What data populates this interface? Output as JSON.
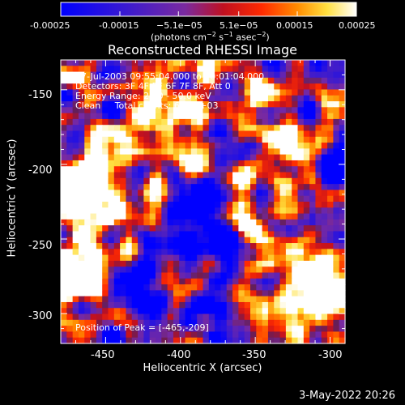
{
  "colorbar": {
    "ticks": [
      "-0.00025",
      "-0.00015",
      "−5.1e−05",
      "5.1e−05",
      "0.00015",
      "0.00025"
    ],
    "tick_values": [
      -0.00025,
      -0.00015,
      -5.1e-05,
      5.1e-05,
      0.00015,
      0.00025
    ],
    "range": [
      -0.00025,
      0.00025
    ],
    "units_prefix": "(photons cm",
    "units_exp1": "−2",
    "units_mid": " s",
    "units_exp2": "−1",
    "units_mid2": " asec",
    "units_exp3": "−2",
    "units_suffix": ")"
  },
  "chart_data": {
    "type": "heatmap",
    "title": "Reconstructed RHESSI Image",
    "xlabel": "Heliocentric X (arcsec)",
    "ylabel": "Heliocentric Y (arcsec)",
    "xlim": [
      -480,
      -290
    ],
    "ylim": [
      -320,
      -130
    ],
    "xticks": [
      -450,
      -400,
      -350,
      -300
    ],
    "yticks": [
      -150,
      -200,
      -250,
      -300
    ],
    "colormap": "rainbow-ish: blue → purple → red → orange → yellow → white",
    "annotations": [
      "17-Jul-2003 09:55:04.000 to 10:01:04.000",
      "Detectors: 3F 4F 5F 6F 7F 8F, Att 0",
      "Energy Range: 25.0 - 50.0 keV",
      "Clean     Total counts: 6.81E+03"
    ],
    "peak_label": "Position of Peak = [-465,-209]",
    "peak": [
      -465,
      -209
    ]
  },
  "footer": {
    "date": "3-May-2022 20:26"
  }
}
